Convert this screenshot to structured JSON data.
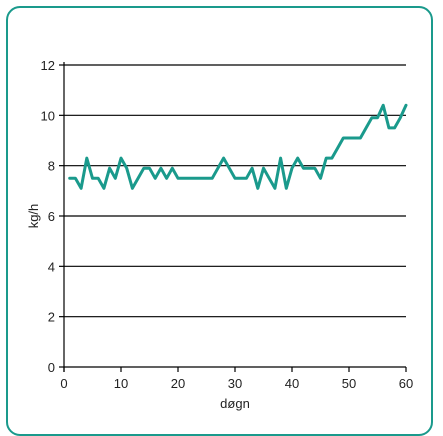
{
  "chart_data": {
    "type": "line",
    "xlabel": "døgn",
    "ylabel": "kg/h",
    "xlim": [
      0,
      60
    ],
    "ylim": [
      0,
      12
    ],
    "x_ticks": [
      "0",
      "10",
      "20",
      "30",
      "40",
      "50",
      "60"
    ],
    "y_ticks": [
      "0",
      "2",
      "4",
      "6",
      "8",
      "10",
      "12"
    ],
    "grid": "horizontal",
    "line_color": "#1a9a8c",
    "series": [
      {
        "x": [
          1,
          2,
          3,
          4,
          5,
          6,
          7,
          8,
          9,
          10,
          11,
          12,
          13,
          14,
          15,
          16,
          17,
          18,
          19,
          20,
          21,
          22,
          23,
          24,
          25,
          26,
          27,
          28,
          29,
          30,
          31,
          32,
          33,
          34,
          35,
          36,
          37,
          38,
          39,
          40,
          41,
          42,
          43,
          44,
          45,
          46,
          47,
          48,
          49,
          50,
          51,
          52,
          53,
          54,
          55,
          56,
          57,
          58,
          59,
          60
        ],
        "y": [
          7.5,
          7.5,
          7.1,
          8.3,
          7.5,
          7.5,
          7.1,
          7.9,
          7.5,
          8.3,
          7.9,
          7.1,
          7.5,
          7.9,
          7.9,
          7.5,
          7.9,
          7.5,
          7.9,
          7.5,
          7.5,
          7.5,
          7.5,
          7.5,
          7.5,
          7.5,
          7.9,
          8.3,
          7.9,
          7.5,
          7.5,
          7.5,
          7.9,
          7.1,
          7.9,
          7.5,
          7.1,
          8.3,
          7.1,
          7.9,
          8.3,
          7.9,
          7.9,
          7.9,
          7.5,
          8.3,
          8.3,
          8.7,
          9.1,
          9.1,
          9.1,
          9.1,
          9.5,
          9.9,
          9.9,
          10.4,
          9.5,
          9.5,
          9.9,
          10.4
        ]
      }
    ]
  }
}
